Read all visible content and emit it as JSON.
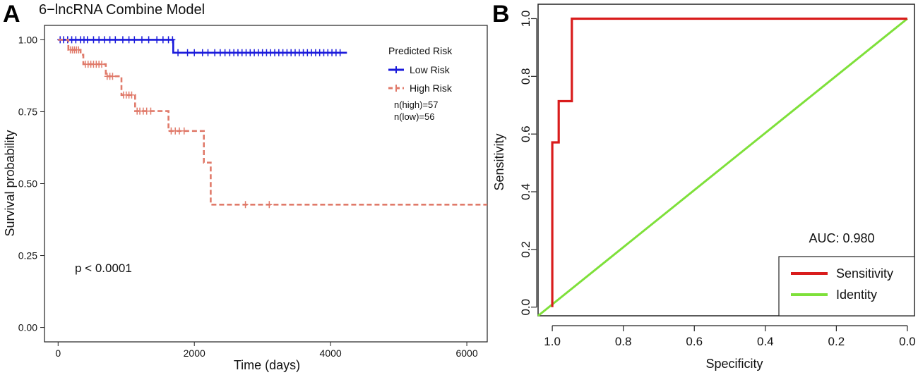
{
  "chart_data": [
    {
      "panel": "A",
      "type": "line",
      "subtype": "kaplan-meier",
      "title": "6−lncRNA Combine Model",
      "xlabel": "Time (days)",
      "ylabel": "Survival probability",
      "xlim": [
        -200,
        6300
      ],
      "ylim": [
        -0.05,
        1.05
      ],
      "xticks": [
        0,
        2000,
        4000,
        6000
      ],
      "xtick_labels": [
        "0",
        "2000",
        "4000",
        "6000"
      ],
      "yticks": [
        0,
        0.25,
        0.5,
        0.75,
        1.0
      ],
      "ytick_labels": [
        "0.00",
        "0.25",
        "0.50",
        "0.75",
        "1.00"
      ],
      "legend_title": "Predicted Risk",
      "annotations": [
        "n(high)=57",
        "n(low)=56",
        "p < 0.0001"
      ],
      "series": [
        {
          "name": "Low Risk",
          "color": "#1a1adb",
          "dash": "solid",
          "steps": [
            [
              0,
              1.0
            ],
            [
              1690,
              1.0
            ],
            [
              1690,
              0.955
            ],
            [
              4240,
              0.955
            ]
          ],
          "censor_x": [
            30,
            80,
            140,
            200,
            260,
            330,
            380,
            430,
            520,
            600,
            680,
            760,
            840,
            950,
            1040,
            1120,
            1230,
            1330,
            1450,
            1540,
            1620,
            1680,
            1760,
            1900,
            2000,
            2120,
            2200,
            2300,
            2380,
            2450,
            2520,
            2580,
            2640,
            2700,
            2760,
            2820,
            2880,
            2940,
            3000,
            3060,
            3120,
            3180,
            3240,
            3300,
            3360,
            3420,
            3480,
            3540,
            3600,
            3660,
            3720,
            3780,
            3840,
            3900,
            3960,
            4020,
            4080,
            4140
          ]
        },
        {
          "name": "High Risk",
          "color": "#e07a6a",
          "dash": "dashed",
          "steps": [
            [
              0,
              1.0
            ],
            [
              150,
              1.0
            ],
            [
              150,
              0.965
            ],
            [
              330,
              0.965
            ],
            [
              330,
              0.948
            ],
            [
              370,
              0.948
            ],
            [
              370,
              0.915
            ],
            [
              700,
              0.915
            ],
            [
              700,
              0.873
            ],
            [
              930,
              0.873
            ],
            [
              930,
              0.808
            ],
            [
              1130,
              0.808
            ],
            [
              1130,
              0.752
            ],
            [
              1620,
              0.752
            ],
            [
              1620,
              0.683
            ],
            [
              2140,
              0.683
            ],
            [
              2140,
              0.573
            ],
            [
              2240,
              0.573
            ],
            [
              2240,
              0.427
            ],
            [
              6300,
              0.427
            ]
          ],
          "censor_x": [
            180,
            210,
            240,
            270,
            300,
            400,
            440,
            480,
            520,
            560,
            600,
            640,
            720,
            760,
            800,
            960,
            1000,
            1040,
            1080,
            1160,
            1200,
            1250,
            1300,
            1360,
            1660,
            1720,
            1780,
            1850,
            2750,
            3100
          ]
        }
      ]
    },
    {
      "panel": "B",
      "type": "line",
      "subtype": "roc",
      "xlabel": "Specificity",
      "ylabel": "Sensitivity",
      "xlim": [
        1.04,
        -0.02
      ],
      "ylim": [
        -0.03,
        1.05
      ],
      "xticks": [
        1.0,
        0.8,
        0.6,
        0.4,
        0.2,
        0.0
      ],
      "xtick_labels": [
        "1.0",
        "0.8",
        "0.6",
        "0.4",
        "0.2",
        "0.0"
      ],
      "yticks": [
        0.0,
        0.2,
        0.4,
        0.6,
        0.8,
        1.0
      ],
      "ytick_labels": [
        "0.0",
        "0.2",
        "0.4",
        "0.6",
        "0.8",
        "1.0"
      ],
      "auc_label": "AUC: 0.980",
      "series": [
        {
          "name": "Sensitivity",
          "color": "#d91c1c",
          "points": [
            [
              1.0,
              0.0
            ],
            [
              1.0,
              0.571
            ],
            [
              0.982,
              0.571
            ],
            [
              0.982,
              0.714
            ],
            [
              0.945,
              0.714
            ],
            [
              0.945,
              1.0
            ],
            [
              0.0,
              1.0
            ]
          ]
        },
        {
          "name": "Identity",
          "color": "#7ee03a",
          "points": [
            [
              1.04,
              -0.03
            ],
            [
              0.0,
              1.0
            ]
          ]
        }
      ]
    }
  ],
  "panel_labels": {
    "a": "A",
    "b": "B"
  }
}
